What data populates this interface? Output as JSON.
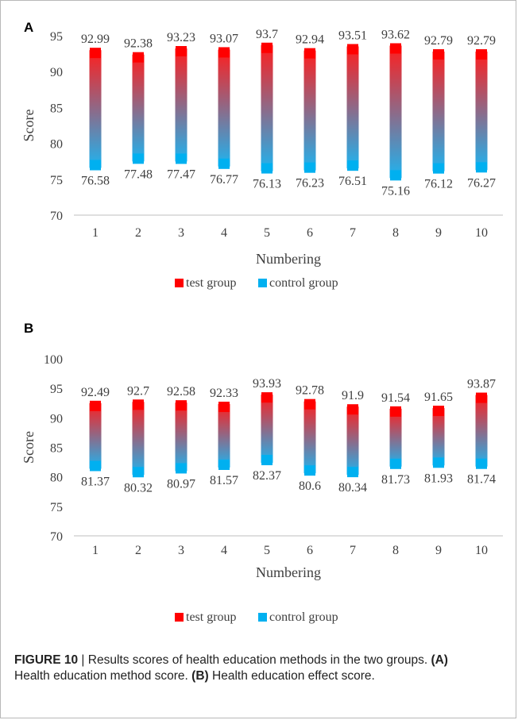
{
  "figure": {
    "label": "FIGURE 10",
    "separator": "|",
    "caption_parts": [
      {
        "text": "Results scores of health education methods in the two groups. ",
        "bold": false
      },
      {
        "text": "(A)",
        "bold": true
      },
      {
        "text": " Health education method score. ",
        "bold": false
      },
      {
        "text": "(B)",
        "bold": true
      },
      {
        "text": " Health education effect score.",
        "bold": false
      }
    ]
  },
  "colors": {
    "test_group": "#ff0000",
    "control_group": "#00b0f0",
    "bar_top": "#ff1e1e",
    "bar_bottom": "#1eb4f0",
    "text": "#404040"
  },
  "chart_data": [
    {
      "panel": "A",
      "type": "bar",
      "subtype": "floating range bar",
      "categories": [
        "1",
        "2",
        "3",
        "4",
        "5",
        "6",
        "7",
        "8",
        "9",
        "10"
      ],
      "series": [
        {
          "name": "test group",
          "values": [
            92.99,
            92.38,
            93.23,
            93.07,
            93.7,
            92.94,
            93.51,
            93.62,
            92.79,
            92.79
          ]
        },
        {
          "name": "control group",
          "values": [
            76.58,
            77.48,
            77.47,
            76.77,
            76.13,
            76.23,
            76.51,
            75.16,
            76.12,
            76.27
          ]
        }
      ],
      "test_labels": [
        "92.99",
        "92.38",
        "93.23",
        "93.07",
        "93.7",
        "92.94",
        "93.51",
        "93.62",
        "92.79",
        "92.79"
      ],
      "control_labels": [
        "76.58",
        "77.48",
        "77.47",
        "76.77",
        "76.13",
        "76.23",
        "76.51",
        "75.16",
        "76.12",
        "76.27"
      ],
      "xlabel": "Numbering",
      "ylabel": "Score",
      "ylim": [
        70,
        95
      ],
      "yticks": [
        70,
        75,
        80,
        85,
        90,
        95
      ],
      "ytick_labels": [
        "70",
        "75",
        "80",
        "85",
        "90",
        "95"
      ],
      "grid": false,
      "legend": "bottom-center"
    },
    {
      "panel": "B",
      "type": "bar",
      "subtype": "floating range bar",
      "categories": [
        "1",
        "2",
        "3",
        "4",
        "5",
        "6",
        "7",
        "8",
        "9",
        "10"
      ],
      "series": [
        {
          "name": "test group",
          "values": [
            92.49,
            92.7,
            92.58,
            92.33,
            93.93,
            92.78,
            91.9,
            91.54,
            91.65,
            93.87
          ]
        },
        {
          "name": "control group",
          "values": [
            81.37,
            80.32,
            80.97,
            81.57,
            82.37,
            80.6,
            80.34,
            81.73,
            81.93,
            81.74
          ]
        }
      ],
      "test_labels": [
        "92.49",
        "92.7",
        "92.58",
        "92.33",
        "93.93",
        "92.78",
        "91.9",
        "91.54",
        "91.65",
        "93.87"
      ],
      "control_labels": [
        "81.37",
        "80.32",
        "80.97",
        "81.57",
        "82.37",
        "80.6",
        "80.34",
        "81.73",
        "81.93",
        "81.74"
      ],
      "xlabel": "Numbering",
      "ylabel": "Score",
      "ylim": [
        70,
        100
      ],
      "yticks": [
        70,
        75,
        80,
        85,
        90,
        95,
        100
      ],
      "ytick_labels": [
        "70",
        "75",
        "80",
        "85",
        "90",
        "95",
        "100"
      ],
      "grid": false,
      "legend": "bottom-center"
    }
  ]
}
